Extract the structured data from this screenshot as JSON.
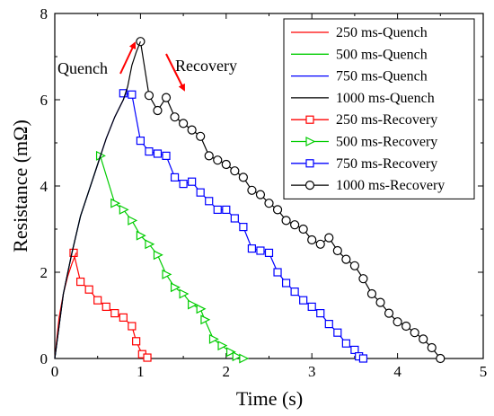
{
  "chart_data": {
    "type": "line",
    "xlabel": "Time (s)",
    "ylabel": "Resistance (mΩ)",
    "xlim": [
      0,
      5
    ],
    "ylim": [
      0,
      8
    ],
    "xticks": [
      "0",
      "1",
      "2",
      "3",
      "4",
      "5"
    ],
    "yticks": [
      "0",
      "2",
      "4",
      "6",
      "8"
    ],
    "grid": false,
    "legend_position": "top-right",
    "annotations": {
      "quench": "Quench",
      "recovery": "Recovery"
    },
    "series": [
      {
        "name": "250 ms-Quench",
        "color": "#ff0000",
        "marker": "none",
        "x": [
          0.0,
          0.05,
          0.1,
          0.15,
          0.2,
          0.25
        ],
        "y": [
          0.0,
          0.95,
          1.5,
          1.9,
          2.2,
          2.45
        ]
      },
      {
        "name": "500 ms-Quench",
        "color": "#00cc00",
        "marker": "none",
        "x": [
          0.0,
          0.1,
          0.2,
          0.3,
          0.4,
          0.5,
          0.53
        ],
        "y": [
          0.0,
          1.5,
          2.45,
          3.3,
          3.9,
          4.5,
          4.7
        ]
      },
      {
        "name": "750 ms-Quench",
        "color": "#0000ff",
        "marker": "none",
        "x": [
          0.0,
          0.1,
          0.2,
          0.3,
          0.4,
          0.5,
          0.6,
          0.7,
          0.8,
          0.83
        ],
        "y": [
          0.0,
          1.5,
          2.45,
          3.3,
          3.9,
          4.5,
          5.1,
          5.6,
          6.0,
          6.15
        ]
      },
      {
        "name": "1000 ms-Quench",
        "color": "#000000",
        "marker": "none",
        "x": [
          0.0,
          0.1,
          0.2,
          0.3,
          0.4,
          0.5,
          0.6,
          0.7,
          0.8,
          0.85,
          0.9,
          0.95,
          1.0
        ],
        "y": [
          0.0,
          1.5,
          2.45,
          3.3,
          3.9,
          4.5,
          5.1,
          5.6,
          6.0,
          6.3,
          6.8,
          7.1,
          7.35
        ]
      },
      {
        "name": "250 ms-Recovery",
        "color": "#ff0000",
        "marker": "square",
        "x": [
          0.22,
          0.3,
          0.4,
          0.5,
          0.6,
          0.7,
          0.8,
          0.9,
          0.95,
          1.02,
          1.08
        ],
        "y": [
          2.45,
          1.78,
          1.6,
          1.35,
          1.2,
          1.05,
          0.95,
          0.75,
          0.4,
          0.1,
          0.02
        ]
      },
      {
        "name": "500 ms-Recovery",
        "color": "#00cc00",
        "marker": "triangle-right",
        "x": [
          0.53,
          0.7,
          0.8,
          0.9,
          1.0,
          1.1,
          1.2,
          1.3,
          1.4,
          1.5,
          1.6,
          1.7,
          1.75,
          1.85,
          1.95,
          2.05,
          2.12,
          2.2
        ],
        "y": [
          4.7,
          3.6,
          3.45,
          3.2,
          2.85,
          2.65,
          2.4,
          1.95,
          1.65,
          1.5,
          1.25,
          1.15,
          0.9,
          0.45,
          0.3,
          0.15,
          0.05,
          0.0
        ]
      },
      {
        "name": "750 ms-Recovery",
        "color": "#0000ff",
        "marker": "square",
        "x": [
          0.8,
          0.9,
          1.0,
          1.1,
          1.2,
          1.3,
          1.4,
          1.5,
          1.6,
          1.7,
          1.8,
          1.9,
          2.0,
          2.1,
          2.2,
          2.3,
          2.4,
          2.5,
          2.6,
          2.7,
          2.8,
          2.9,
          3.0,
          3.1,
          3.2,
          3.3,
          3.4,
          3.5,
          3.55,
          3.6
        ],
        "y": [
          6.15,
          6.12,
          5.05,
          4.8,
          4.75,
          4.7,
          4.2,
          4.05,
          4.1,
          3.85,
          3.65,
          3.45,
          3.45,
          3.25,
          3.05,
          2.55,
          2.5,
          2.45,
          2.0,
          1.75,
          1.55,
          1.35,
          1.2,
          1.05,
          0.8,
          0.6,
          0.35,
          0.2,
          0.05,
          0.0
        ]
      },
      {
        "name": "1000 ms-Recovery",
        "color": "#000000",
        "marker": "circle",
        "x": [
          1.0,
          1.1,
          1.2,
          1.3,
          1.4,
          1.5,
          1.6,
          1.7,
          1.8,
          1.9,
          2.0,
          2.1,
          2.2,
          2.3,
          2.4,
          2.5,
          2.6,
          2.7,
          2.8,
          2.9,
          3.0,
          3.1,
          3.2,
          3.3,
          3.4,
          3.5,
          3.6,
          3.7,
          3.8,
          3.9,
          4.0,
          4.1,
          4.2,
          4.3,
          4.4,
          4.5
        ],
        "y": [
          7.35,
          6.1,
          5.75,
          6.05,
          5.6,
          5.45,
          5.3,
          5.15,
          4.7,
          4.6,
          4.5,
          4.35,
          4.2,
          3.9,
          3.8,
          3.6,
          3.45,
          3.2,
          3.1,
          3.0,
          2.75,
          2.65,
          2.8,
          2.5,
          2.3,
          2.15,
          1.85,
          1.5,
          1.3,
          1.05,
          0.85,
          0.75,
          0.6,
          0.45,
          0.25,
          0.0
        ]
      }
    ]
  }
}
